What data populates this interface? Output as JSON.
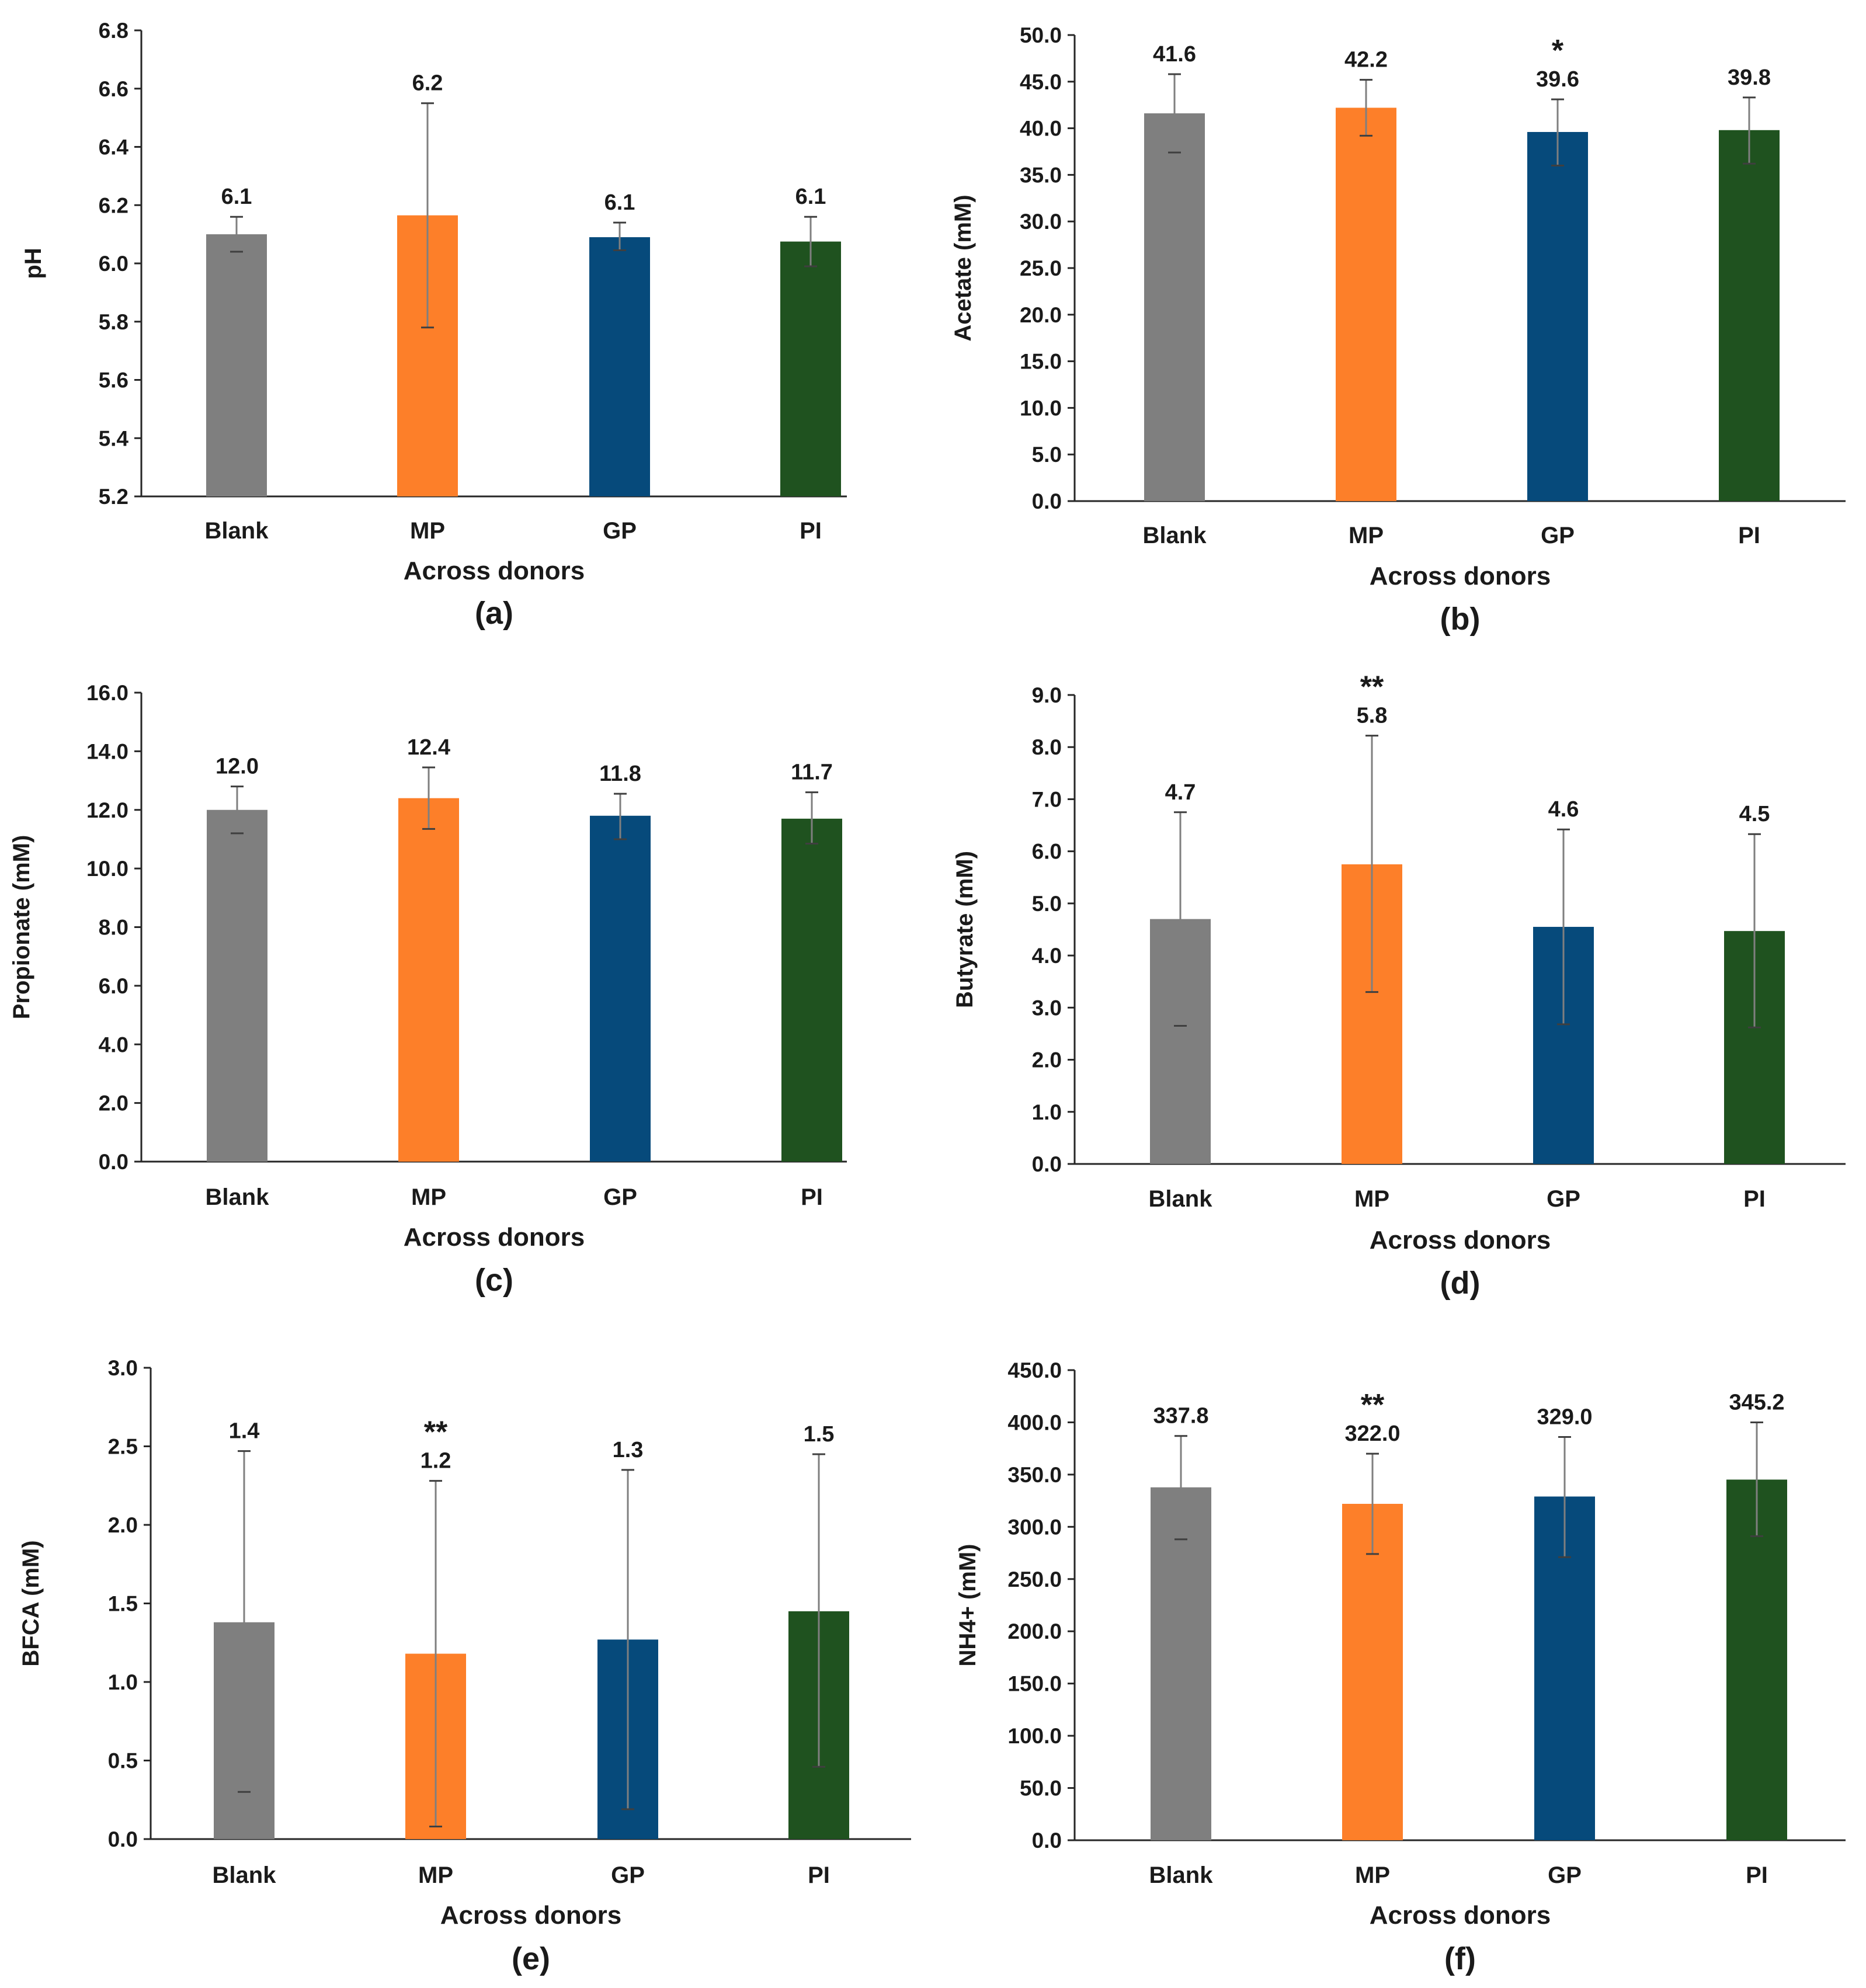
{
  "chart_data": [
    {
      "type": "bar",
      "panel_label": "(a)",
      "categories": [
        "Blank",
        "MP",
        "GP",
        "PI"
      ],
      "values": [
        6.1,
        6.165,
        6.09,
        6.075
      ],
      "value_labels": [
        "6.1",
        "6.2",
        "6.1",
        "6.1"
      ],
      "error_low": [
        6.04,
        5.78,
        6.045,
        5.99
      ],
      "error_high": [
        6.16,
        6.55,
        6.14,
        6.16
      ],
      "significance": [
        "",
        "",
        "",
        ""
      ],
      "xlabel": "Across donors",
      "ylabel": "pH",
      "ylim": [
        5.2,
        6.8
      ],
      "yticks": [
        "5.2",
        "5.4",
        "5.6",
        "5.8",
        "6.0",
        "6.2",
        "6.4",
        "6.6",
        "6.8"
      ]
    },
    {
      "type": "bar",
      "panel_label": "(b)",
      "categories": [
        "Blank",
        "MP",
        "GP",
        "PI"
      ],
      "values": [
        41.6,
        42.2,
        39.6,
        39.8
      ],
      "value_labels": [
        "41.6",
        "42.2",
        "39.6",
        "39.8"
      ],
      "error_low": [
        37.4,
        39.2,
        36.0,
        36.2
      ],
      "error_high": [
        45.8,
        45.2,
        43.1,
        43.3
      ],
      "significance": [
        "",
        "",
        "*",
        ""
      ],
      "xlabel": "Across donors",
      "ylabel": "Acetate (mM)",
      "ylim": [
        0,
        50
      ],
      "yticks": [
        "0.0",
        "5.0",
        "10.0",
        "15.0",
        "20.0",
        "25.0",
        "30.0",
        "35.0",
        "40.0",
        "45.0",
        "50.0"
      ]
    },
    {
      "type": "bar",
      "panel_label": "(c)",
      "categories": [
        "Blank",
        "MP",
        "GP",
        "PI"
      ],
      "values": [
        12.0,
        12.4,
        11.8,
        11.7
      ],
      "value_labels": [
        "12.0",
        "12.4",
        "11.8",
        "11.7"
      ],
      "error_low": [
        11.2,
        11.35,
        11.0,
        10.85
      ],
      "error_high": [
        12.8,
        13.45,
        12.55,
        12.6
      ],
      "significance": [
        "",
        "",
        "",
        ""
      ],
      "xlabel": "Across donors",
      "ylabel": "Propionate (mM)",
      "ylim": [
        0,
        16
      ],
      "yticks": [
        "0.0",
        "2.0",
        "4.0",
        "6.0",
        "8.0",
        "10.0",
        "12.0",
        "14.0",
        "16.0"
      ]
    },
    {
      "type": "bar",
      "panel_label": "(d)",
      "categories": [
        "Blank",
        "MP",
        "GP",
        "PI"
      ],
      "values": [
        4.7,
        5.75,
        4.55,
        4.47
      ],
      "value_labels": [
        "4.7",
        "5.8",
        "4.6",
        "4.5"
      ],
      "error_low": [
        2.65,
        3.3,
        2.68,
        2.62
      ],
      "error_high": [
        6.75,
        8.22,
        6.42,
        6.33
      ],
      "significance": [
        "",
        "**",
        "",
        ""
      ],
      "xlabel": "Across donors",
      "ylabel": "Butyrate (mM)",
      "ylim": [
        0,
        9
      ],
      "yticks": [
        "0.0",
        "1.0",
        "2.0",
        "3.0",
        "4.0",
        "5.0",
        "6.0",
        "7.0",
        "8.0",
        "9.0"
      ]
    },
    {
      "type": "bar",
      "panel_label": "(e)",
      "categories": [
        "Blank",
        "MP",
        "GP",
        "PI"
      ],
      "values": [
        1.38,
        1.18,
        1.27,
        1.45
      ],
      "value_labels": [
        "1.4",
        "1.2",
        "1.3",
        "1.5"
      ],
      "error_low": [
        0.3,
        0.08,
        0.19,
        0.46
      ],
      "error_high": [
        2.47,
        2.28,
        2.35,
        2.45
      ],
      "significance": [
        "",
        "**",
        "",
        ""
      ],
      "xlabel": "Across donors",
      "ylabel": "BFCA (mM)",
      "ylim": [
        0,
        3
      ],
      "yticks": [
        "0.0",
        "0.5",
        "1.0",
        "1.5",
        "2.0",
        "2.5",
        "3.0"
      ]
    },
    {
      "type": "bar",
      "panel_label": "(f)",
      "categories": [
        "Blank",
        "MP",
        "GP",
        "PI"
      ],
      "values": [
        337.8,
        322.0,
        329.0,
        345.2
      ],
      "value_labels": [
        "337.8",
        "322.0",
        "329.0",
        "345.2"
      ],
      "error_low": [
        288.0,
        274.0,
        271.0,
        291.0
      ],
      "error_high": [
        387.0,
        370.0,
        386.0,
        400.0
      ],
      "significance": [
        "",
        "**",
        "",
        ""
      ],
      "xlabel": "Across donors",
      "ylabel": "NH4+ (mM)",
      "ylim": [
        0,
        450
      ],
      "yticks": [
        "0.0",
        "50.0",
        "100.0",
        "150.0",
        "200.0",
        "250.0",
        "300.0",
        "350.0",
        "400.0",
        "450.0"
      ]
    }
  ],
  "colors": {
    "Blank": "#7f7f7f",
    "MP": "#fd7f29",
    "GP": "#064a7b",
    "PI": "#1f521f",
    "axis": "#262626",
    "errorbar": "#7f7f7f",
    "errorcap": "#3f3f3f"
  }
}
